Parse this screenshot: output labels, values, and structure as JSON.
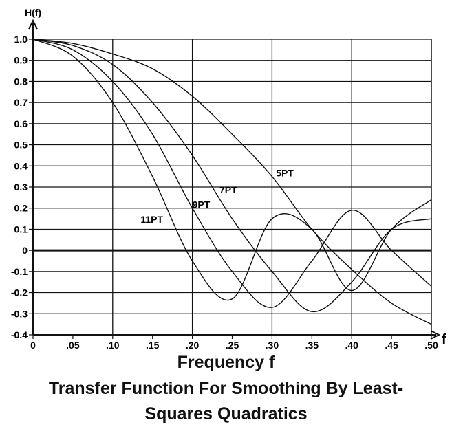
{
  "chart_data": {
    "type": "line",
    "title": "Transfer Function For Smoothing By Least-Squares Quadratics",
    "title_lines": [
      "Transfer Function For Smoothing By Least-",
      "Squares Quadratics"
    ],
    "xlabel": "Frequency f",
    "ylabel": "H(f)",
    "x_axis_end_label": "f",
    "xlim": [
      0,
      0.5
    ],
    "ylim": [
      -0.4,
      1.0
    ],
    "grid": true,
    "x_ticks": [
      0,
      0.05,
      0.1,
      0.15,
      0.2,
      0.25,
      0.3,
      0.35,
      0.4,
      0.45,
      0.5
    ],
    "x_tick_labels": [
      "0",
      ".05",
      ".10",
      ".15",
      ".20",
      ".25",
      ".30",
      ".35",
      ".40",
      ".45",
      ".50"
    ],
    "y_ticks": [
      1.0,
      0.9,
      0.8,
      0.7,
      0.6,
      0.5,
      0.4,
      0.3,
      0.2,
      0.1,
      0,
      -0.1,
      -0.2,
      -0.3,
      -0.4
    ],
    "y_tick_labels": [
      "1.0",
      "0.9",
      "0.8",
      "0.7",
      "0.6",
      "0.5",
      "0.4",
      "0.3",
      "0.2",
      "0.1",
      "0",
      "-0.1",
      "-0.2",
      "-0.3",
      "-0.4"
    ],
    "series": [
      {
        "name": "5PT",
        "points": 5,
        "x": [
          0,
          0.05,
          0.1,
          0.15,
          0.2,
          0.25,
          0.3,
          0.35,
          0.4,
          0.45,
          0.5
        ],
        "values": [
          1.0,
          0.98,
          0.93,
          0.86,
          0.73,
          0.55,
          0.35,
          0.1,
          -0.09,
          -0.25,
          -0.35
        ]
      },
      {
        "name": "7PT",
        "points": 7,
        "x": [
          0,
          0.05,
          0.1,
          0.15,
          0.2,
          0.25,
          0.3,
          0.35,
          0.4,
          0.45,
          0.5
        ],
        "values": [
          1.0,
          0.97,
          0.88,
          0.7,
          0.45,
          0.15,
          -0.1,
          -0.29,
          -0.15,
          0.1,
          0.15
        ]
      },
      {
        "name": "9PT",
        "points": 9,
        "x": [
          0,
          0.05,
          0.1,
          0.15,
          0.2,
          0.25,
          0.3,
          0.35,
          0.4,
          0.45,
          0.5
        ],
        "values": [
          1.0,
          0.95,
          0.8,
          0.55,
          0.2,
          -0.1,
          -0.27,
          -0.05,
          0.19,
          0.0,
          -0.17
        ]
      },
      {
        "name": "11PT",
        "points": 11,
        "x": [
          0,
          0.05,
          0.1,
          0.15,
          0.2,
          0.25,
          0.3,
          0.35,
          0.4,
          0.45,
          0.5
        ],
        "values": [
          1.0,
          0.92,
          0.7,
          0.35,
          -0.05,
          -0.23,
          0.15,
          0.1,
          -0.19,
          0.1,
          0.24
        ]
      }
    ]
  }
}
